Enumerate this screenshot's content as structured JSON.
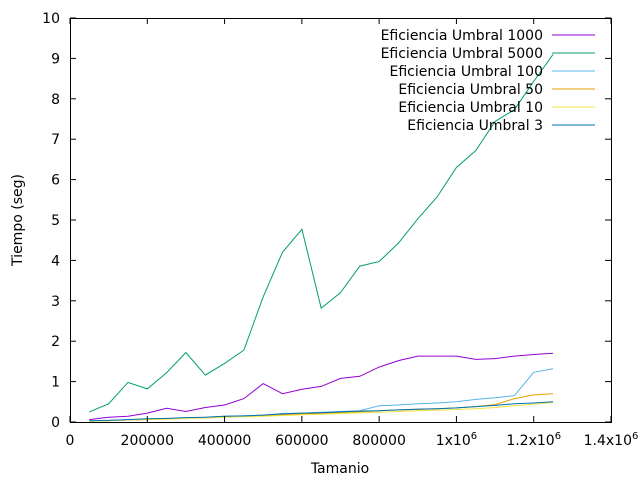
{
  "chart_data": {
    "type": "line",
    "xlabel": "Tamanio",
    "ylabel": "Tiempo (seg)",
    "xlim": [
      0,
      1400000
    ],
    "ylim": [
      0,
      10
    ],
    "x_ticks": [
      {
        "value": 0,
        "label": "0"
      },
      {
        "value": 200000,
        "label": "200000"
      },
      {
        "value": 400000,
        "label": "400000"
      },
      {
        "value": 600000,
        "label": "600000"
      },
      {
        "value": 800000,
        "label": "800000"
      },
      {
        "value": 1000000,
        "label": "1x10",
        "sup": "6"
      },
      {
        "value": 1200000,
        "label": "1.2x10",
        "sup": "6"
      },
      {
        "value": 1400000,
        "label": "1.4x10",
        "sup": "6"
      }
    ],
    "y_ticks": [
      {
        "value": 0,
        "label": "0"
      },
      {
        "value": 1,
        "label": "1"
      },
      {
        "value": 2,
        "label": "2"
      },
      {
        "value": 3,
        "label": "3"
      },
      {
        "value": 4,
        "label": "4"
      },
      {
        "value": 5,
        "label": "5"
      },
      {
        "value": 6,
        "label": "6"
      },
      {
        "value": 7,
        "label": "7"
      },
      {
        "value": 8,
        "label": "8"
      },
      {
        "value": 9,
        "label": "9"
      },
      {
        "value": 10,
        "label": "10"
      }
    ],
    "grid": false,
    "legend_position": "top-right",
    "x": [
      50000,
      100000,
      150000,
      200000,
      250000,
      300000,
      350000,
      400000,
      450000,
      500000,
      550000,
      600000,
      650000,
      700000,
      750000,
      800000,
      850000,
      900000,
      950000,
      1000000,
      1050000,
      1100000,
      1150000,
      1200000,
      1250000
    ],
    "series": [
      {
        "name": "Eficiencia Umbral 1000",
        "color": "#9400d3",
        "values": [
          0.06,
          0.12,
          0.14,
          0.22,
          0.34,
          0.26,
          0.36,
          0.42,
          0.58,
          0.95,
          0.7,
          0.81,
          0.88,
          1.08,
          1.13,
          1.36,
          1.52,
          1.63,
          1.63,
          1.63,
          1.55,
          1.57,
          1.63,
          1.67,
          1.7
        ]
      },
      {
        "name": "Eficiencia Umbral 5000",
        "color": "#009e73",
        "values": [
          0.25,
          0.45,
          0.98,
          0.82,
          1.22,
          1.72,
          1.16,
          1.45,
          1.78,
          3.1,
          4.2,
          4.77,
          2.82,
          3.2,
          3.86,
          3.97,
          4.43,
          5.03,
          5.57,
          6.3,
          6.72,
          7.44,
          7.73,
          8.43,
          9.1
        ]
      },
      {
        "name": "Eficiencia Umbral 100",
        "color": "#56b4e9",
        "values": [
          0.02,
          0.04,
          0.06,
          0.07,
          0.08,
          0.1,
          0.12,
          0.14,
          0.15,
          0.17,
          0.21,
          0.22,
          0.24,
          0.26,
          0.28,
          0.4,
          0.42,
          0.45,
          0.47,
          0.5,
          0.56,
          0.6,
          0.65,
          1.23,
          1.32
        ]
      },
      {
        "name": "Eficiencia Umbral 50",
        "color": "#e69f00",
        "values": [
          0.02,
          0.03,
          0.05,
          0.06,
          0.08,
          0.1,
          0.11,
          0.13,
          0.14,
          0.15,
          0.18,
          0.2,
          0.21,
          0.23,
          0.25,
          0.28,
          0.3,
          0.31,
          0.33,
          0.35,
          0.38,
          0.43,
          0.58,
          0.67,
          0.7
        ]
      },
      {
        "name": "Eficiencia Umbral 10",
        "color": "#f0e442",
        "values": [
          0.02,
          0.03,
          0.05,
          0.06,
          0.07,
          0.09,
          0.1,
          0.12,
          0.13,
          0.14,
          0.16,
          0.18,
          0.19,
          0.21,
          0.23,
          0.24,
          0.26,
          0.28,
          0.29,
          0.31,
          0.33,
          0.36,
          0.4,
          0.44,
          0.48
        ]
      },
      {
        "name": "Eficiencia Umbral 3",
        "color": "#0072b2",
        "values": [
          0.03,
          0.04,
          0.06,
          0.08,
          0.09,
          0.11,
          0.12,
          0.14,
          0.15,
          0.17,
          0.2,
          0.22,
          0.23,
          0.25,
          0.27,
          0.28,
          0.3,
          0.32,
          0.33,
          0.35,
          0.38,
          0.41,
          0.45,
          0.47,
          0.5
        ]
      }
    ]
  }
}
